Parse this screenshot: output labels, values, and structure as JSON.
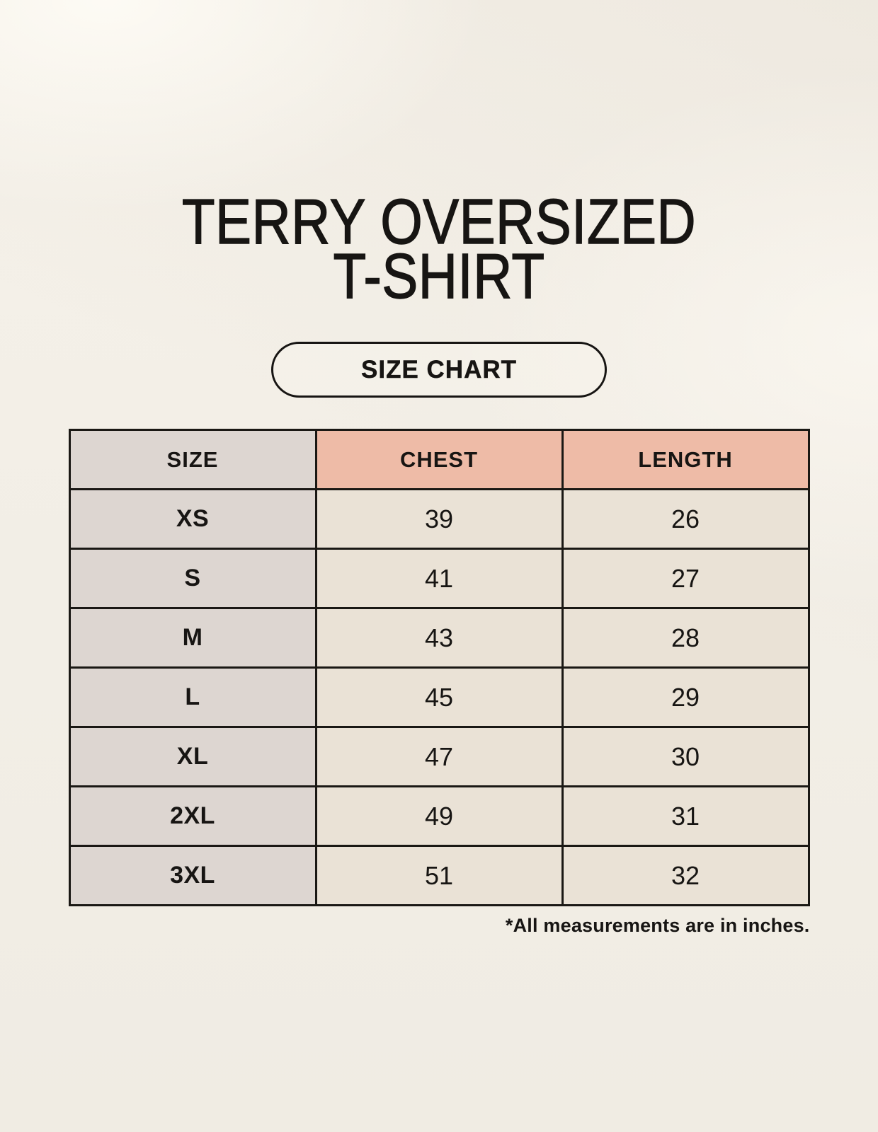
{
  "page": {
    "title_lines": [
      "TERRY OVERSIZED",
      "T-SHIRT"
    ],
    "size_chart_button_label": "SIZE CHART",
    "note": "*All measurements are in inches."
  },
  "chart_data": {
    "type": "table",
    "title": "TERRY OVERSIZED T-SHIRT",
    "headers": [
      "SIZE",
      "CHEST",
      "LENGTH"
    ],
    "rows": [
      [
        "XS",
        39,
        26
      ],
      [
        "S",
        41,
        27
      ],
      [
        "M",
        43,
        28
      ],
      [
        "L",
        45,
        29
      ],
      [
        "XL",
        47,
        30
      ],
      [
        "2XL",
        49,
        31
      ],
      [
        "3XL",
        51,
        32
      ]
    ],
    "units_note": "*All measurements are in inches.",
    "units": "inches"
  },
  "colors": {
    "page_background": "#f3efe7",
    "header_accent": "#eebba7",
    "size_column_fill": "#ddd6d1",
    "cell_fill": "#eae2d6",
    "border": "#1a1814",
    "text": "#171513"
  }
}
